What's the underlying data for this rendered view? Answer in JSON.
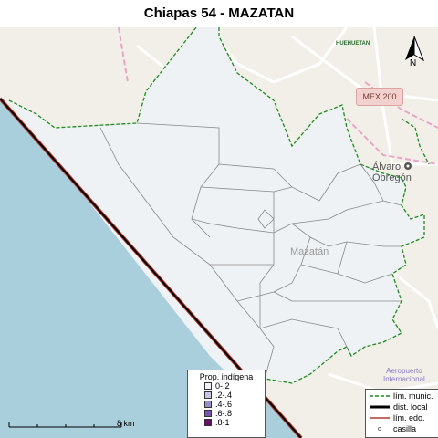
{
  "title": "Chiapas 54 - MAZATAN",
  "labels": {
    "huehuetan": "HUEHUETAN",
    "mex200": "MEX 200",
    "alvaro": "Álvaro Obregón",
    "mazatan": "Mazatán",
    "airport_1": "Aeropuerto",
    "airport_2": "Internacional"
  },
  "north_label": "N",
  "scale_label": "8 km",
  "legend_prop": {
    "title": "Prop. indígena",
    "items": [
      {
        "label": "0-.2",
        "color": "#f4f1fb"
      },
      {
        "label": ".2-.4",
        "color": "#c9c3e4"
      },
      {
        "label": ".4-.6",
        "color": "#9a8ccb"
      },
      {
        "label": ".6-.8",
        "color": "#7656b0"
      },
      {
        "label": ".8-1",
        "color": "#6a0e6a"
      }
    ]
  },
  "legend_lines": {
    "items": [
      {
        "label": "lím. munic.",
        "kind": "dashed-green"
      },
      {
        "label": "dist. local",
        "kind": "thick-black"
      },
      {
        "label": "lím. edo.",
        "kind": "red-line"
      },
      {
        "label": "casilla",
        "kind": "point"
      }
    ]
  },
  "colors": {
    "sea": "#a9cfdc",
    "land": "#f2efe9",
    "district_fill": "#eef2f5",
    "municipal_border": "#1f8a1f",
    "state_border": "#b23a2e",
    "district_border": "#000000"
  }
}
